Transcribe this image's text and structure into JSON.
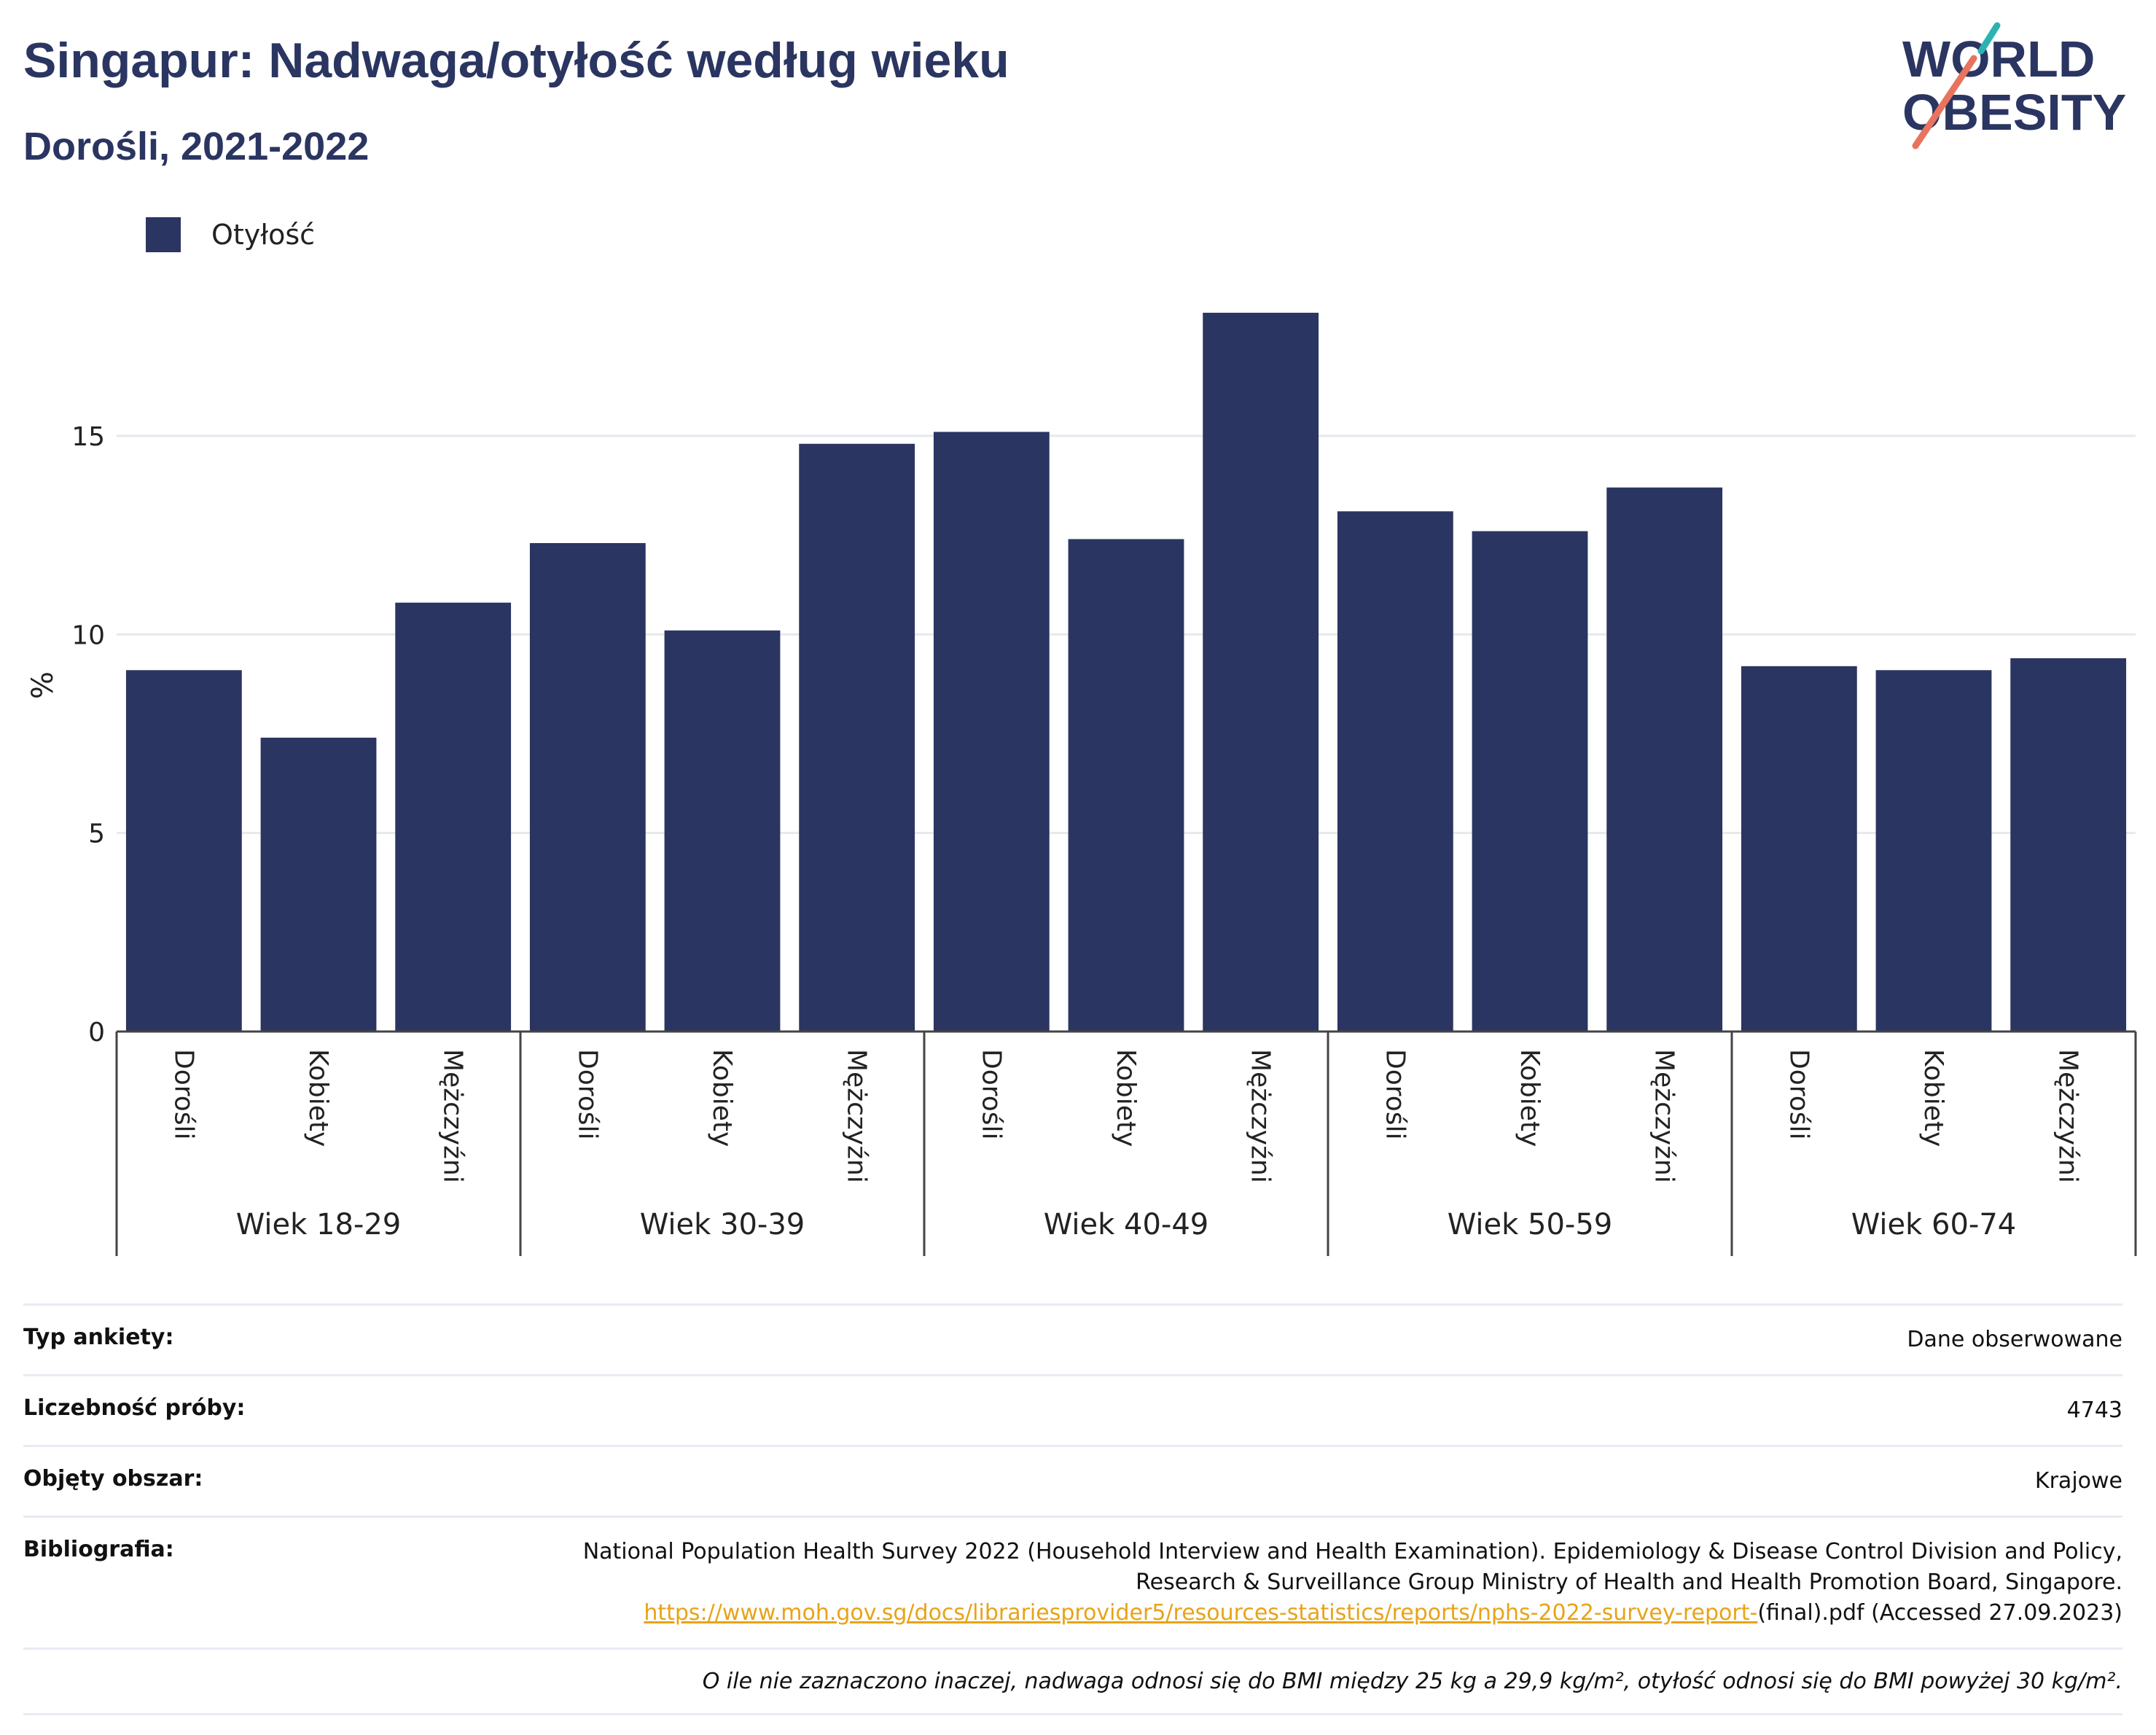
{
  "header": {
    "title": "Singapur: Nadwaga/otyłość według wieku",
    "subtitle": "Dorośli, 2021-2022"
  },
  "logo": {
    "line1": "WORLD",
    "line2": "OBESITY",
    "text_color": "#2a3561",
    "accent_teal": "#2bb3b1",
    "accent_coral": "#e8735f"
  },
  "legend": {
    "label": "Otyłość",
    "color": "#2a3561"
  },
  "chart_data": {
    "type": "bar",
    "ylabel": "%",
    "ylim": [
      0,
      19
    ],
    "yticks": [
      0,
      5,
      10,
      15
    ],
    "grid": true,
    "color": "#2a3561",
    "groups": [
      {
        "label": "Wiek 18-29",
        "categories": [
          "Dorośli",
          "Kobiety",
          "Mężczyźni"
        ],
        "values": [
          9.1,
          7.4,
          10.8
        ]
      },
      {
        "label": "Wiek 30-39",
        "categories": [
          "Dorośli",
          "Kobiety",
          "Mężczyźni"
        ],
        "values": [
          12.3,
          10.1,
          14.8
        ]
      },
      {
        "label": "Wiek 40-49",
        "categories": [
          "Dorośli",
          "Kobiety",
          "Mężczyźni"
        ],
        "values": [
          15.1,
          12.4,
          18.1
        ]
      },
      {
        "label": "Wiek 50-59",
        "categories": [
          "Dorośli",
          "Kobiety",
          "Mężczyźni"
        ],
        "values": [
          13.1,
          12.6,
          13.7
        ]
      },
      {
        "label": "Wiek 60-74",
        "categories": [
          "Dorośli",
          "Kobiety",
          "Mężczyźni"
        ],
        "values": [
          9.2,
          9.1,
          9.4
        ]
      }
    ]
  },
  "info": {
    "survey_type": {
      "label": "Typ ankiety:",
      "value": "Dane obserwowane"
    },
    "sample_size": {
      "label": "Liczebność próby:",
      "value": "4743"
    },
    "coverage": {
      "label": "Objęty obszar:",
      "value": "Krajowe"
    },
    "bibliography": {
      "label": "Bibliografia:",
      "text": "National Population Health Survey 2022 (Household Interview and Health Examination). Epidemiology & Disease Control Division and Policy, Research & Surveillance Group Ministry of Health and Health Promotion Board, Singapore.",
      "link": "https://www.moh.gov.sg/docs/librariesprovider5/resources-statistics/reports/nphs-2022-survey-report-",
      "after_link": "(final).pdf (Accessed 27.09.2023)"
    },
    "note": "O ile nie zaznaczono inaczej, nadwaga odnosi się do BMI między 25 kg a 29,9 kg/m², otyłość odnosi się do BMI powyżej 30 kg/m²."
  }
}
